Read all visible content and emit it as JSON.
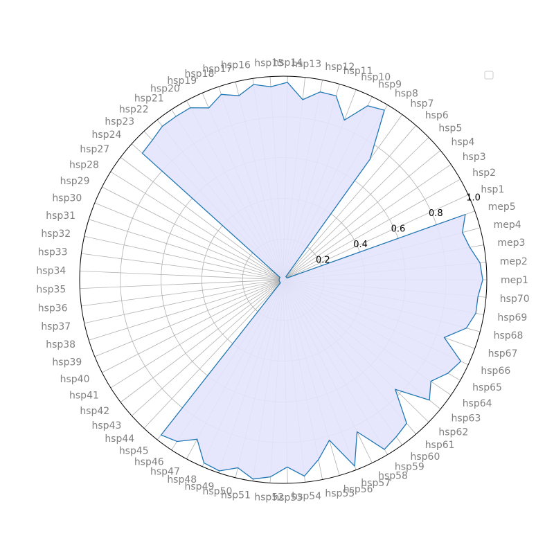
{
  "chart_data": {
    "type": "radar",
    "title": "",
    "categories": [
      "mep1",
      "mep2",
      "mep3",
      "mep4",
      "mep5",
      "hsp1",
      "hsp2",
      "hsp3",
      "hsp4",
      "hsp5",
      "hsp6",
      "hsp7",
      "hsp8",
      "hsp9",
      "hsp10",
      "hsp11",
      "hsp12",
      "hsp13",
      "hsp14",
      "hsp15",
      "hsp16",
      "hsp17",
      "hsp18",
      "hsp19",
      "hsp20",
      "hsp21",
      "hsp22",
      "hsp23",
      "hsp24",
      "hsp27",
      "hsp28",
      "hsp29",
      "hsp30",
      "hsp31",
      "hsp32",
      "hsp33",
      "hsp34",
      "hsp35",
      "hsp36",
      "hsp37",
      "hsp38",
      "hsp39",
      "hsp40",
      "hsp41",
      "hsp42",
      "hsp43",
      "hsp44",
      "hsp45",
      "hsp46",
      "hsp47",
      "hsp48",
      "hsp49",
      "hsp50",
      "hsp51",
      "hsp52",
      "hsp53",
      "hsp54",
      "hsp55",
      "hsp56",
      "hsp57",
      "hsp58",
      "hsp59",
      "hsp60",
      "hsp61",
      "hsp62",
      "hsp63",
      "hsp64",
      "hsp65",
      "hsp66",
      "hsp67",
      "hsp68",
      "hsp69",
      "hsp70"
    ],
    "series": [
      {
        "values": [
          0.98,
          0.97,
          0.93,
          0.91,
          0.95,
          0.02,
          0.02,
          0.02,
          0.02,
          0.02,
          0.02,
          0.73,
          0.97,
          0.95,
          0.84,
          0.94,
          0.94,
          0.89,
          0.97,
          0.95,
          0.97,
          0.93,
          0.96,
          0.92,
          0.96,
          0.96,
          0.96,
          0.94,
          0.93,
          0.02,
          0.02,
          0.02,
          0.02,
          0.02,
          0.02,
          0.02,
          0.02,
          0.02,
          0.02,
          0.02,
          0.02,
          0.02,
          0.02,
          0.02,
          0.02,
          0.02,
          0.02,
          0.97,
          0.95,
          0.89,
          0.98,
          0.99,
          0.95,
          0.99,
          0.97,
          0.92,
          0.97,
          0.9,
          0.82,
          0.98,
          0.83,
          0.97,
          0.95,
          0.93,
          0.77,
          0.93,
          0.88,
          0.93,
          0.96,
          0.84,
          0.93,
          0.96,
          0.96
        ]
      }
    ],
    "rlim": [
      0,
      1.0
    ],
    "rticks": [
      "0.2",
      "0.4",
      "0.6",
      "0.8",
      "1.0"
    ],
    "rtick_values": [
      0.2,
      0.4,
      0.6,
      0.8,
      1.0
    ],
    "grid": true,
    "legend": {
      "placement": "top-right",
      "entries": []
    },
    "colors": {
      "line": "#1f77b4",
      "fill": "#e3e3fd"
    }
  }
}
